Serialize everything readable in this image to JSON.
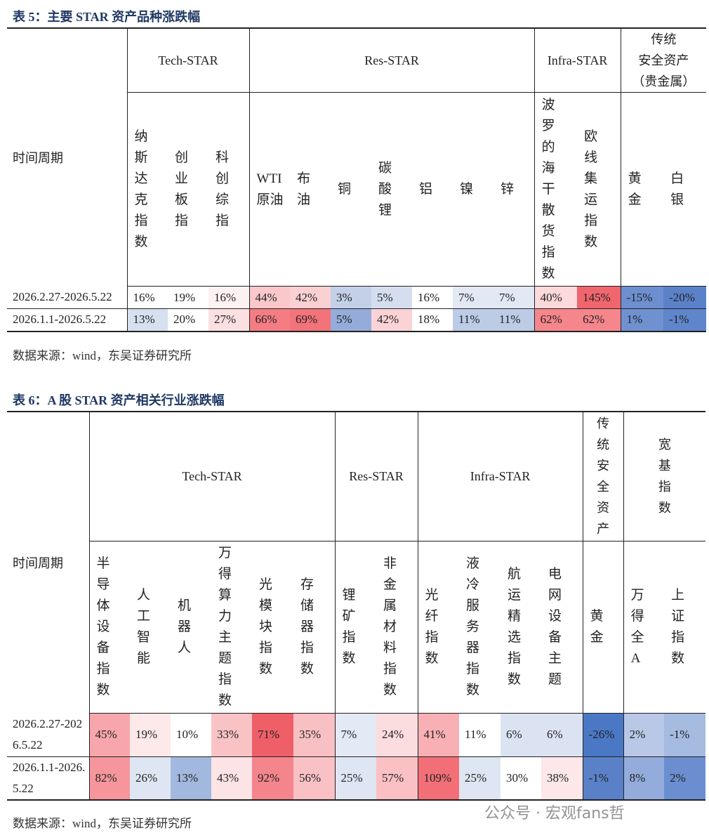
{
  "table5": {
    "title": "表 5：主要 STAR 资产品种涨跌幅",
    "row_header": "时间周期",
    "groups": [
      {
        "name": "Tech-STAR",
        "columns": [
          "纳斯达克指数",
          "创业板指",
          "科创综指"
        ]
      },
      {
        "name": "Res-STAR",
        "columns": [
          "WTI原油",
          "布油",
          "铜",
          "碳酸锂",
          "铝",
          "镍",
          "锌"
        ]
      },
      {
        "name": "Infra-STAR",
        "columns": [
          "波罗的海干散货指数",
          "欧线集运指数"
        ]
      },
      {
        "name": [
          "传统",
          "安全资产",
          "（贵金属）"
        ],
        "columns": [
          "黄金",
          "白银"
        ]
      }
    ],
    "rows": [
      {
        "period": "2026.2.27-2026.5.22",
        "values": [
          "16%",
          "19%",
          "16%",
          "44%",
          "42%",
          "3%",
          "5%",
          "16%",
          "7%",
          "7%",
          "40%",
          "145%",
          "-15%",
          "-20%"
        ],
        "colors": [
          "#ffffff",
          "#ffffff",
          "#fdf1f2",
          "#fac8cb",
          "#fbd0d3",
          "#c3d0e8",
          "#d5deef",
          "#ffffff",
          "#e2e8f4",
          "#e2e8f4",
          "#fcd9db",
          "#f0666e",
          "#6d8fcf",
          "#5b82c9"
        ]
      },
      {
        "period": "2026.1.1-2026.5.22",
        "values": [
          "13%",
          "20%",
          "27%",
          "66%",
          "69%",
          "5%",
          "42%",
          "18%",
          "11%",
          "11%",
          "62%",
          "62%",
          "1%",
          "-1%"
        ],
        "colors": [
          "#d7e0f0",
          "#ffffff",
          "#fbdfe1",
          "#f47c83",
          "#f2737a",
          "#95acdb",
          "#fbd3d6",
          "#ffffff",
          "#bccbe6",
          "#bccbe6",
          "#f5868c",
          "#f5868c",
          "#6f91d0",
          "#5f85cb"
        ]
      }
    ],
    "source": "数据来源：wind，东吴证券研究所"
  },
  "table6": {
    "title": "表 6：A 股 STAR 资产相关行业涨跌幅",
    "row_header": "时间周期",
    "groups": [
      {
        "name": "Tech-STAR",
        "columns": [
          "半导体设备指数",
          "人工智能",
          "机器人",
          "万得算力主题指数",
          "光模块指数",
          "存储器指数"
        ]
      },
      {
        "name": "Res-STAR",
        "columns": [
          "锂矿指数",
          "非金属材料指数"
        ]
      },
      {
        "name": "Infra-STAR",
        "columns": [
          "光纤指数",
          "液冷服务器指数",
          "航运精选指数",
          "电网设备主题"
        ]
      },
      {
        "name": "传统安全资产",
        "columns": [
          "黄金"
        ]
      },
      {
        "name": "宽基指数",
        "columns": [
          "万得全A",
          "上证指数"
        ]
      }
    ],
    "rows": [
      {
        "period": "2026.2.27-2026.5.22",
        "values": [
          "45%",
          "19%",
          "10%",
          "33%",
          "71%",
          "35%",
          "7%",
          "24%",
          "41%",
          "11%",
          "6%",
          "6%",
          "-26%",
          "2%",
          "-1%"
        ],
        "colors": [
          "#f7a7ac",
          "#fde9ea",
          "#ffffff",
          "#f9c3c6",
          "#ef5f68",
          "#f9c0c4",
          "#e3e9f5",
          "#fbdde0",
          "#f8b0b4",
          "#ffffff",
          "#dbe3f2",
          "#dbe3f2",
          "#4a78c4",
          "#b8c8e6",
          "#a6bbe0"
        ]
      },
      {
        "period": "2026.1.1-2026.5.22",
        "values": [
          "82%",
          "26%",
          "13%",
          "43%",
          "92%",
          "56%",
          "25%",
          "57%",
          "109%",
          "25%",
          "30%",
          "38%",
          "-1%",
          "8%",
          "2%"
        ],
        "colors": [
          "#f6969c",
          "#dfe6f3",
          "#a3b8df",
          "#fce3e5",
          "#f4858c",
          "#fac1c5",
          "#dfe6f3",
          "#fac0c4",
          "#f26f77",
          "#dfe6f3",
          "#ffffff",
          "#fde7e9",
          "#5a81c8",
          "#93acdb",
          "#6a8ecf"
        ]
      }
    ],
    "source": "数据来源：wind，东吴证券研究所"
  },
  "watermark": "公众号 · 宏观fans哲"
}
